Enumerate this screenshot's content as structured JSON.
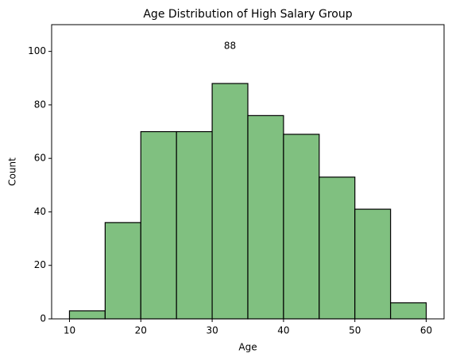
{
  "chart_data": {
    "type": "histogram",
    "title": "Age Distribution of High Salary Group",
    "xlabel": "Age",
    "ylabel": "Count",
    "bins": [
      10,
      15,
      20,
      25,
      30,
      35,
      40,
      45,
      50,
      55,
      60
    ],
    "values": [
      3,
      36,
      70,
      70,
      88,
      76,
      69,
      53,
      41,
      6
    ],
    "color": "#80c080",
    "edgecolor": "#000000",
    "annotation": "88",
    "xlim": [
      7.5,
      62.5
    ],
    "xticks": [
      10,
      20,
      30,
      40,
      50,
      60
    ],
    "ylim": [
      0,
      110
    ],
    "yticks": [
      0,
      20,
      40,
      60,
      80,
      100
    ],
    "grid": false
  }
}
